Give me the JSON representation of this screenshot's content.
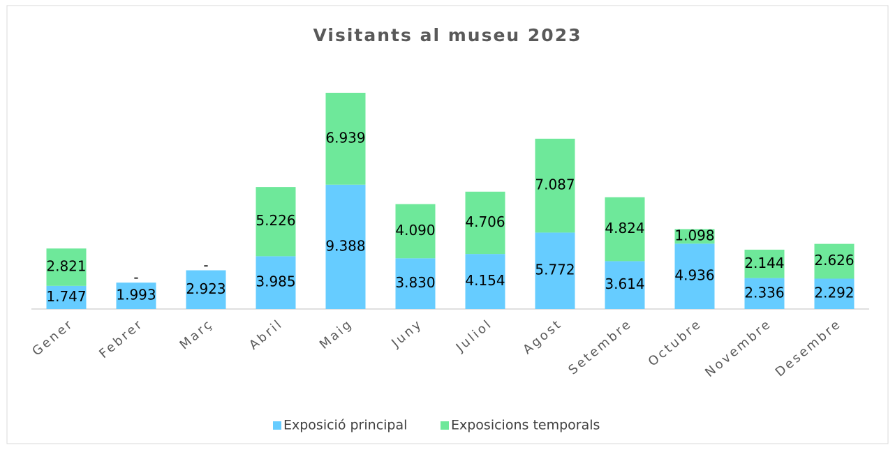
{
  "chart_data": {
    "type": "stacked_bar",
    "title": "Visitants al museu 2023",
    "categories": [
      "Gener",
      "Febrer",
      "Març",
      "Abril",
      "Maig",
      "Juny",
      "Juliol",
      "Agost",
      "Setembre",
      "Octubre",
      "Novembre",
      "Desembre"
    ],
    "series": [
      {
        "name": "Exposició principal",
        "color": "#66ccff",
        "values": [
          1747,
          1993,
          2923,
          3985,
          9388,
          3830,
          4154,
          5772,
          3614,
          4936,
          2336,
          2292
        ],
        "value_labels": [
          "1.747",
          "1.993",
          "2.923",
          "3.985",
          "9.388",
          "3.830",
          "4.154",
          "5.772",
          "3.614",
          "4.936",
          "2.336",
          "2.292"
        ]
      },
      {
        "name": "Exposicions temporals",
        "color": "#6ee89a",
        "values": [
          2821,
          0,
          0,
          5226,
          6939,
          4090,
          4706,
          7087,
          4824,
          1098,
          2144,
          2626
        ],
        "value_labels": [
          "2.821",
          "-",
          "-",
          "5.226",
          "6.939",
          "4.090",
          "4.706",
          "7.087",
          "4.824",
          "1.098",
          "2.144",
          "2.626"
        ]
      }
    ],
    "legend": "bottom"
  }
}
